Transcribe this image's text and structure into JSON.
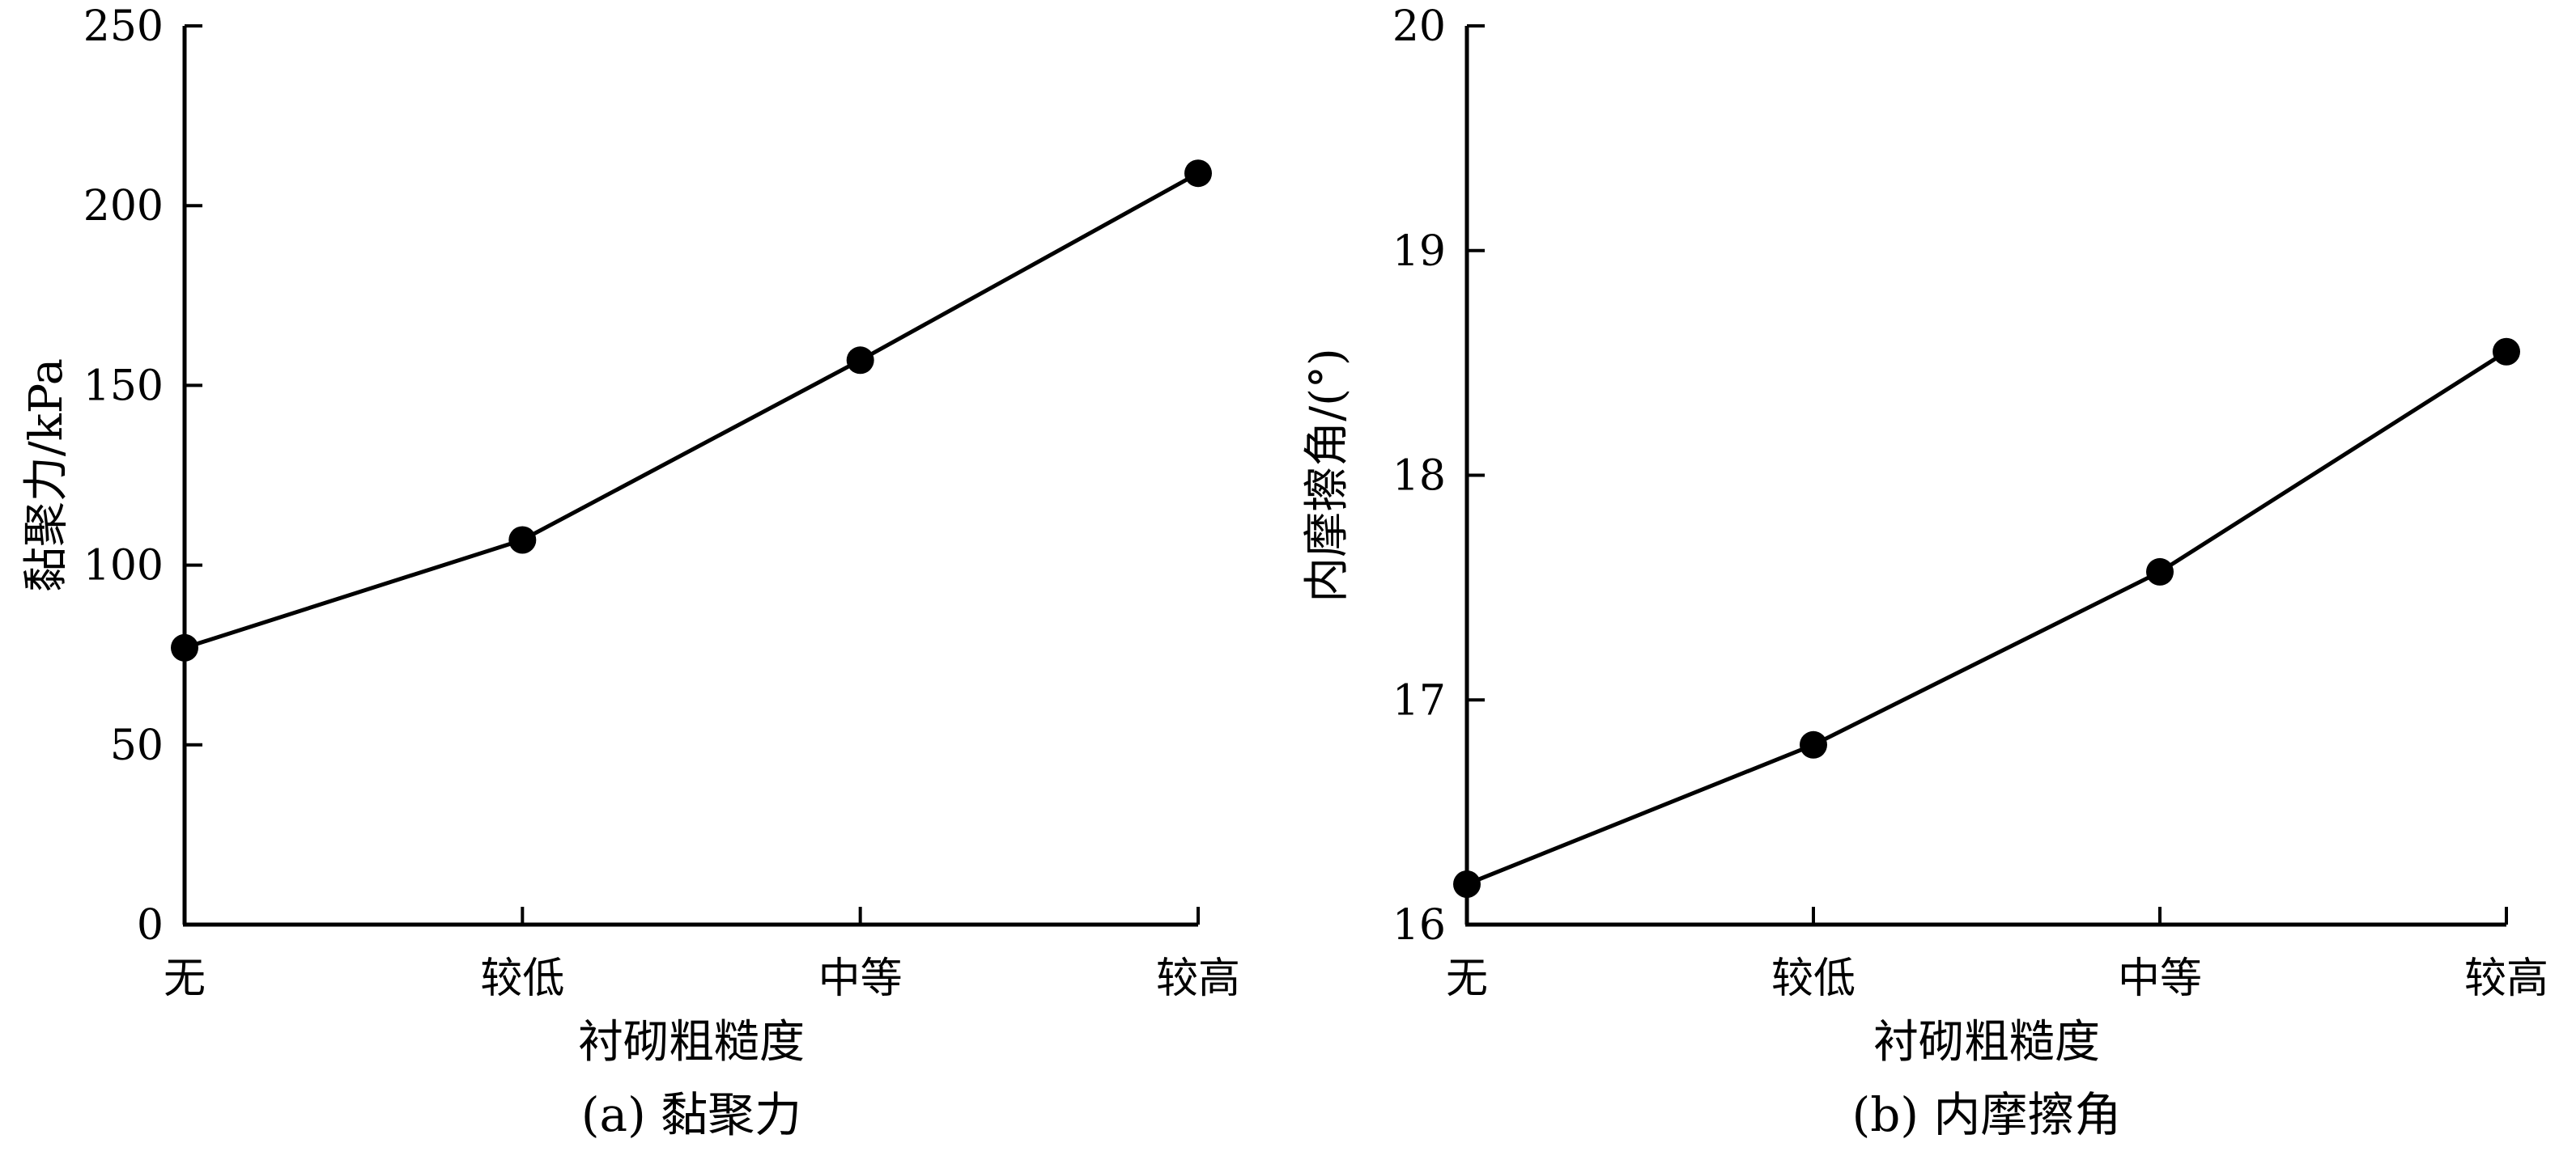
{
  "chart_data": [
    {
      "type": "line",
      "caption": "(a) 黏聚力",
      "xlabel": "衬砌粗糙度",
      "ylabel": "黏聚力/kPa",
      "categories": [
        "无",
        "较低",
        "中等",
        "较高"
      ],
      "series": [
        {
          "values": [
            77,
            107,
            157,
            209
          ]
        }
      ],
      "ylim": [
        0,
        250
      ],
      "yticks": [
        0,
        50,
        100,
        150,
        200,
        250
      ],
      "ytick_labels": [
        "0",
        "50",
        "100",
        "150",
        "200",
        "250"
      ],
      "grid": false,
      "color": "#000000"
    },
    {
      "type": "line",
      "caption": "(b) 内摩擦角",
      "xlabel": "衬砌粗糙度",
      "ylabel": "内摩擦角/(°)",
      "categories": [
        "无",
        "较低",
        "中等",
        "较高"
      ],
      "series": [
        {
          "values": [
            16.18,
            16.8,
            17.57,
            18.55
          ]
        }
      ],
      "ylim": [
        16,
        20
      ],
      "yticks": [
        16,
        17,
        18,
        19,
        20
      ],
      "ytick_labels": [
        "16",
        "17",
        "18",
        "19",
        "20"
      ],
      "grid": false,
      "color": "#000000"
    }
  ]
}
